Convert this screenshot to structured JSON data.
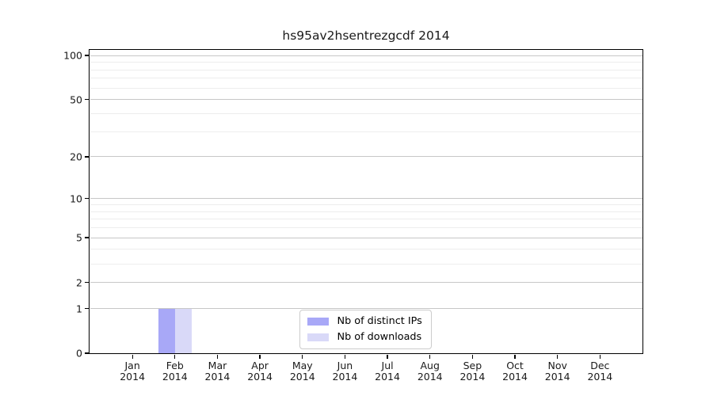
{
  "chart_data": {
    "type": "bar",
    "title": "hs95av2hsentrezgcdf 2014",
    "categories": [
      "Jan",
      "Feb",
      "Mar",
      "Apr",
      "May",
      "Jun",
      "Jul",
      "Aug",
      "Sep",
      "Oct",
      "Nov",
      "Dec"
    ],
    "category_year": "2014",
    "series": [
      {
        "name": "Nb of distinct IPs",
        "color": "#a8a8f7",
        "values": [
          0,
          1,
          0,
          0,
          0,
          0,
          0,
          0,
          0,
          0,
          0,
          0
        ]
      },
      {
        "name": "Nb of downloads",
        "color": "#d9d9f8",
        "values": [
          0,
          1,
          0,
          0,
          0,
          0,
          0,
          0,
          0,
          0,
          0,
          0
        ]
      }
    ],
    "xlabel": "",
    "ylabel": "",
    "yscale": "log1p",
    "ylim": [
      0,
      109.1
    ],
    "y_major_ticks": [
      0,
      1,
      2,
      5,
      10,
      20,
      50,
      100
    ],
    "y_minor_gridlines": [
      3,
      4,
      6,
      7,
      8,
      9,
      30,
      40,
      60,
      70,
      80,
      90
    ],
    "grid": "horizontal",
    "legend_position": "bottom-center",
    "colors": {
      "background": "#ffffff",
      "spine": "#000000",
      "major_grid": "#c7c7c7",
      "minor_grid": "#ededed",
      "text": "#1a1a1a"
    }
  }
}
